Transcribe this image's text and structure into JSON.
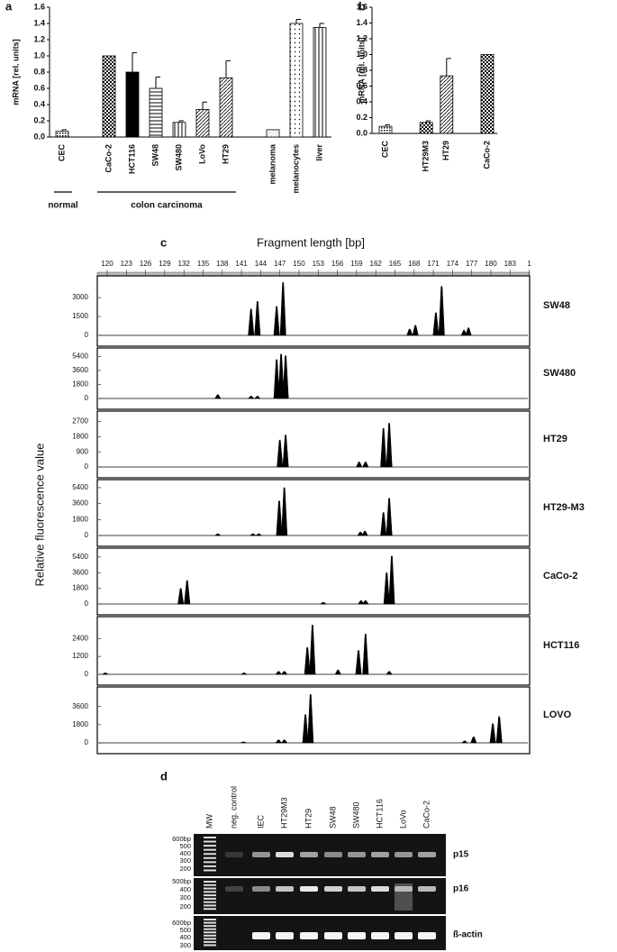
{
  "chart_data": [
    {
      "type": "bar",
      "panel": "a",
      "ylabel": "mRNA [rel. units]",
      "categories": [
        "CEC",
        null,
        "CaCo-2",
        "HCT116",
        "SW48",
        "SW480",
        "LoVo",
        "HT29",
        null,
        "melanoma",
        "melanocytes",
        "liver"
      ],
      "values": [
        0.07,
        null,
        1.0,
        0.8,
        0.6,
        0.18,
        0.34,
        0.73,
        null,
        0.09,
        1.4,
        1.35
      ],
      "errors": [
        0.02,
        null,
        0,
        0.24,
        0.14,
        0.02,
        0.09,
        0.21,
        null,
        0,
        0.05,
        0.05
      ],
      "patterns": [
        "dots",
        null,
        "checker",
        "solid",
        "hlines",
        "vlines",
        "diag",
        "diag",
        null,
        "plain",
        "sparse-dots",
        "vlines"
      ],
      "groups": [
        "normal",
        "colon carcinoma"
      ],
      "ylim": [
        0,
        1.6
      ],
      "yticks": [
        {
          "value": 0,
          "label": "0.0"
        },
        0.2,
        0.4,
        0.6,
        0.8,
        {
          "value": 1,
          "label": "1.0"
        },
        1.2,
        1.4,
        1.6
      ]
    },
    {
      "type": "bar",
      "panel": "b",
      "ylabel": "mRNA [rel. units]",
      "categories": [
        "CEC",
        null,
        "HT29M3",
        "HT29",
        null,
        "CaCo-2"
      ],
      "values": [
        0.09,
        null,
        0.14,
        0.73,
        null,
        1.0
      ],
      "errors": [
        0.02,
        null,
        0.02,
        0.22,
        null,
        0
      ],
      "patterns": [
        "dots",
        null,
        "checker",
        "diag",
        null,
        "checker"
      ],
      "ylim": [
        0,
        1.6
      ],
      "yticks": [
        {
          "value": 0,
          "label": "0.0"
        },
        0.2,
        0.4,
        0.6,
        0.8,
        {
          "value": 1,
          "label": "1.0"
        },
        1.2,
        1.4,
        1.6
      ]
    },
    {
      "type": "peaks",
      "panel": "c",
      "xlabel": "Fragment length [bp]",
      "ylabel": "Relative fluorescence value",
      "title": "SW48",
      "xlim": [
        118.45,
        186.06
      ],
      "xticks": [
        120,
        123,
        126,
        129,
        132,
        135,
        138,
        141,
        144,
        147,
        150,
        153,
        156,
        159,
        162,
        165,
        168,
        171,
        174,
        177,
        180,
        183,
        {
          "value": 186,
          "label": "1"
        }
      ],
      "x": [
        142.5,
        143.5,
        146.5,
        147.5,
        167.3,
        168.2,
        171.4,
        172.3,
        175.8,
        176.5
      ],
      "values": [
        2100,
        2700,
        2300,
        4200,
        500,
        800,
        1800,
        3900,
        400,
        600
      ],
      "ylim": [
        0,
        4300
      ],
      "yticks": [
        0,
        1500,
        3000
      ]
    },
    {
      "type": "peaks",
      "title": "SW480",
      "xlim": [
        118.45,
        186.06
      ],
      "x": [
        137.3,
        142.5,
        143.5,
        146.5,
        147.2,
        147.9
      ],
      "values": [
        500,
        300,
        300,
        5000,
        5700,
        5500
      ],
      "ylim": [
        0,
        5800
      ],
      "yticks": [
        0,
        1800,
        3600,
        5400
      ]
    },
    {
      "type": "peaks",
      "title": "HT29",
      "xlim": [
        118.45,
        186.06
      ],
      "x": [
        147.0,
        147.9,
        159.4,
        160.4,
        163.2,
        164.1
      ],
      "values": [
        1600,
        1900,
        300,
        300,
        2300,
        2600
      ],
      "ylim": [
        0,
        3000
      ],
      "yticks": [
        0,
        900,
        1800,
        2700
      ]
    },
    {
      "type": "peaks",
      "title": "HT29-M3",
      "xlim": [
        118.45,
        186.06
      ],
      "x": [
        137.3,
        142.8,
        143.7,
        146.9,
        147.7,
        159.6,
        160.3,
        163.2,
        164.1
      ],
      "values": [
        200,
        200,
        200,
        3900,
        5400,
        400,
        500,
        2600,
        4200
      ],
      "ylim": [
        0,
        5700
      ],
      "yticks": [
        0,
        1800,
        3600,
        5400
      ]
    },
    {
      "type": "peaks",
      "title": "CaCo-2",
      "xlim": [
        118.45,
        186.06
      ],
      "x": [
        131.5,
        132.5,
        153.8,
        159.7,
        160.4,
        163.7,
        164.5
      ],
      "values": [
        1800,
        2700,
        200,
        400,
        400,
        3600,
        5500
      ],
      "ylim": [
        0,
        5800
      ],
      "yticks": [
        0,
        1800,
        3600,
        5400
      ]
    },
    {
      "type": "peaks",
      "title": "HCT116",
      "xlim": [
        118.45,
        186.06
      ],
      "x": [
        119.7,
        141.4,
        146.8,
        147.7,
        151.3,
        152.1,
        156.1,
        159.3,
        160.4,
        164.1
      ],
      "values": [
        100,
        100,
        200,
        200,
        1800,
        3300,
        300,
        1600,
        2700,
        200
      ],
      "ylim": [
        0,
        3500
      ],
      "yticks": [
        0,
        1200,
        2400
      ]
    },
    {
      "type": "peaks",
      "title": "LOVO",
      "xlim": [
        118.45,
        186.06
      ],
      "x": [
        141.3,
        146.8,
        147.7,
        151.0,
        151.8,
        175.9,
        177.3,
        180.3,
        181.3
      ],
      "values": [
        100,
        300,
        300,
        2800,
        4800,
        200,
        600,
        1900,
        2600
      ],
      "ylim": [
        0,
        5000
      ],
      "yticks": [
        0,
        1800,
        3600
      ]
    }
  ],
  "gel": {
    "panel": "d",
    "lanes": [
      "MW",
      "neg. control",
      "IEC",
      "HT29M3",
      "HT29",
      "SW48",
      "SW480",
      "HCT116",
      "LoVo",
      "CaCo-2"
    ],
    "blots": [
      {
        "name": "p15",
        "markers": [
          "600bp",
          "500",
          "400",
          "300",
          "200"
        ]
      },
      {
        "name": "p16",
        "markers": [
          "500bp",
          "400",
          "300",
          "200"
        ]
      },
      {
        "name": "ß-actin",
        "markers": [
          "600bp",
          "500",
          "400",
          "300"
        ]
      }
    ]
  }
}
